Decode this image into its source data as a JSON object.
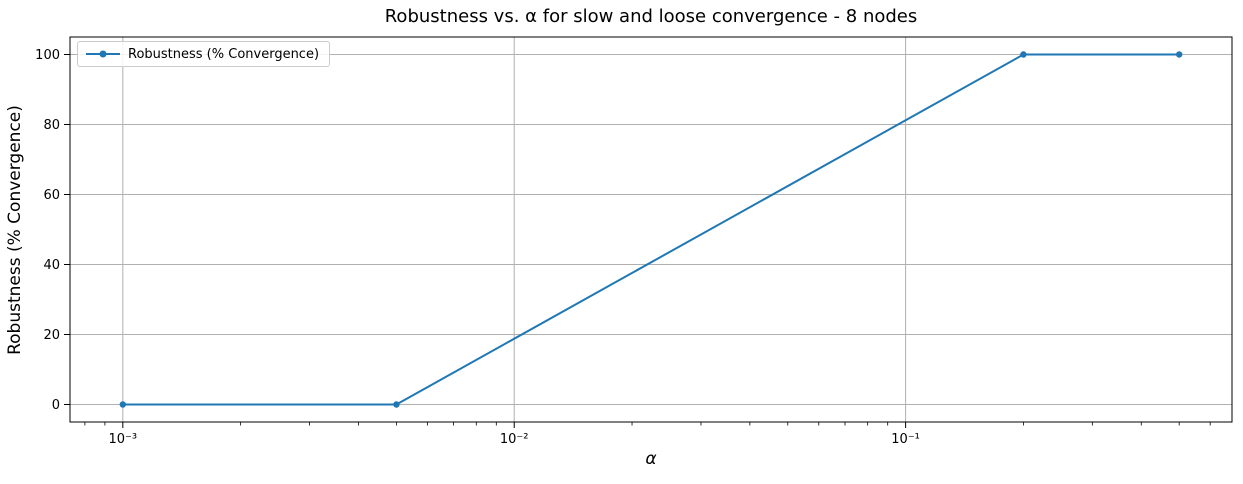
{
  "chart_data": {
    "type": "line",
    "title": "Robustness vs. α for slow and loose convergence - 8 nodes",
    "xlabel": "α",
    "ylabel": "Robustness (% Convergence)",
    "x_scale": "log",
    "x": [
      0.001,
      0.005,
      0.2,
      0.5
    ],
    "series": [
      {
        "name": "Robustness (% Convergence)",
        "values": [
          0,
          0,
          100,
          100
        ],
        "color": "#1f77b4",
        "marker": "circle"
      }
    ],
    "x_tick_labels": [
      {
        "value": 0.001,
        "label": "10⁻³"
      },
      {
        "value": 0.01,
        "label": "10⁻²"
      },
      {
        "value": 0.1,
        "label": "10⁻¹"
      }
    ],
    "y_ticks": [
      0,
      20,
      40,
      60,
      80,
      100
    ],
    "xlim_log10": [
      -3.13495,
      -0.16608
    ],
    "ylim": [
      -5,
      105
    ],
    "grid": "major",
    "legend_position": "upper left"
  },
  "style": {
    "line_color": "#1f77b4",
    "grid_color": "#b0b0b0",
    "spine_color": "#000000",
    "tick_color": "#000000",
    "background": "#ffffff"
  }
}
